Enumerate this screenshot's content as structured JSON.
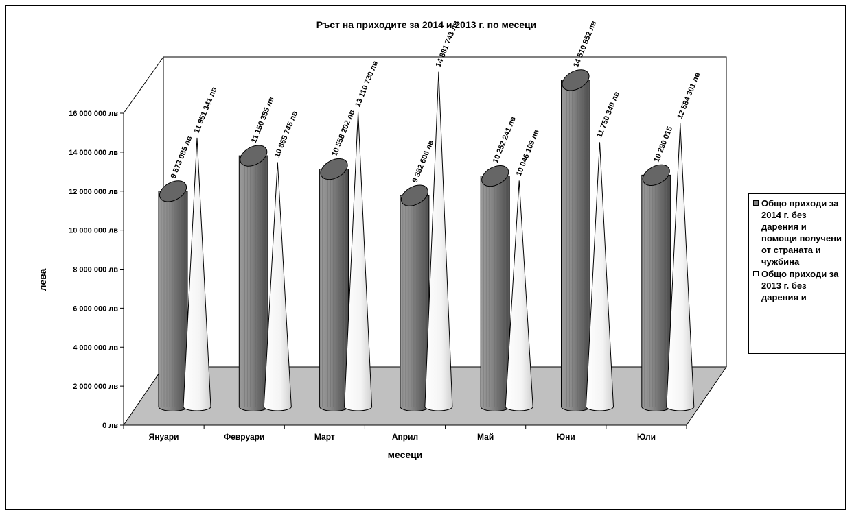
{
  "chart_data": {
    "type": "bar",
    "title": "Ръст на приходите за 2014 и 2013 г. по месеци",
    "xlabel": "месеци",
    "ylabel": "лева",
    "ylim": [
      0,
      16000000
    ],
    "yticks": [
      "0 лв",
      "2 000 000 лв",
      "4 000 000 лв",
      "6 000 000 лв",
      "8 000 000 лв",
      "10 000 000 лв",
      "12 000 000 лв",
      "14 000 000 лв",
      "16 000 000 лв"
    ],
    "categories": [
      "Януари",
      "Февруари",
      "Март",
      "Април",
      "Май",
      "Юни",
      "Юли"
    ],
    "series": [
      {
        "name": "Общо приходи за 2014 г. без дарения и помощи получени от страната и чужбина",
        "shape": "cylinder",
        "color": "#808080",
        "values": [
          9573085,
          11150355,
          10558202,
          9382606,
          10252241,
          14510852,
          10290015
        ],
        "labels": [
          "9 573 085 лв",
          "11 150 355 лв",
          "10 558 202 лв",
          "9 382 606 лв",
          "10 252 241 лв",
          "14 510 852 лв",
          "10 290 015"
        ]
      },
      {
        "name": "Общо приходи за 2013 г. без дарения и",
        "shape": "cone",
        "color": "#ffffff",
        "values": [
          11951341,
          10865745,
          13110730,
          14881743,
          10046109,
          11750349,
          12584301
        ],
        "labels": [
          "11 951 341 лв",
          "10 865 745 лв",
          "13 110 730 лв",
          "14 881 743 лв",
          "10 046 109 лв",
          "11 750 349 лв",
          "12 584 301 лв"
        ]
      }
    ],
    "legend_position": "right",
    "grid": false,
    "floor_color": "#c0c0c0"
  }
}
